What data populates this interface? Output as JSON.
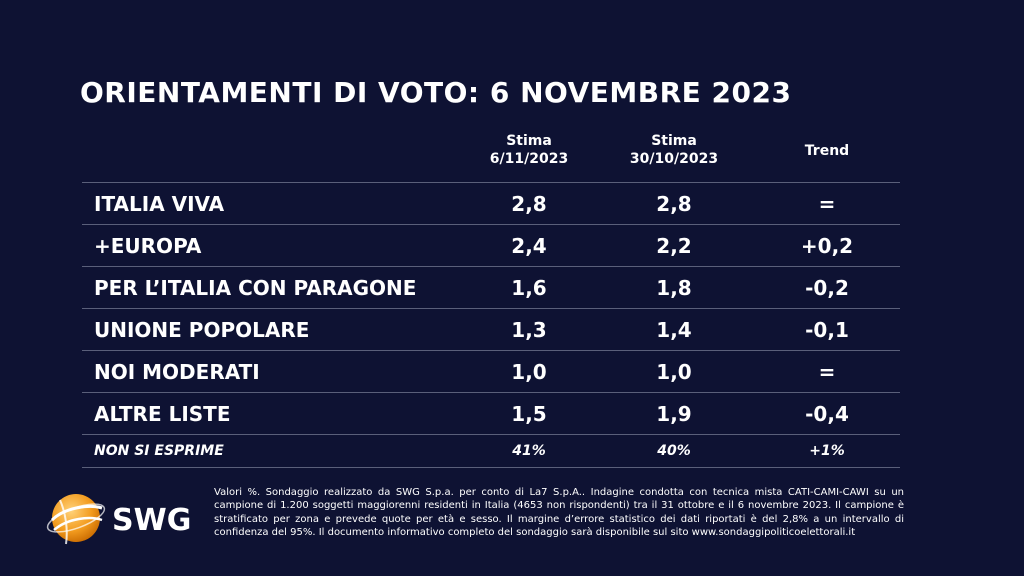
{
  "title": "ORIENTAMENTI DI VOTO: 6 NOVEMBRE 2023",
  "chart_data": {
    "type": "table",
    "columns": [
      {
        "line1": "Stima",
        "line2": "6/11/2023"
      },
      {
        "line1": "Stima",
        "line2": "30/10/2023"
      },
      {
        "line1": "Trend",
        "line2": ""
      }
    ],
    "rows": [
      {
        "party": "ITALIA VIVA",
        "stima_6_11": "2,8",
        "stima_30_10": "2,8",
        "trend": "="
      },
      {
        "party": "+EUROPA",
        "stima_6_11": "2,4",
        "stima_30_10": "2,2",
        "trend": "+0,2"
      },
      {
        "party": "PER L’ITALIA CON PARAGONE",
        "stima_6_11": "1,6",
        "stima_30_10": "1,8",
        "trend": "-0,2"
      },
      {
        "party": "UNIONE POPOLARE",
        "stima_6_11": "1,3",
        "stima_30_10": "1,4",
        "trend": "-0,1"
      },
      {
        "party": "NOI MODERATI",
        "stima_6_11": "1,0",
        "stima_30_10": "1,0",
        "trend": "="
      },
      {
        "party": "ALTRE LISTE",
        "stima_6_11": "1,5",
        "stima_30_10": "1,9",
        "trend": "-0,4"
      }
    ],
    "non_si_esprime": {
      "party": "NON SI ESPRIME",
      "stima_6_11": "41%",
      "stima_30_10": "40%",
      "trend": "+1%"
    }
  },
  "logo": {
    "text": "SWG",
    "color": "#f39c1f"
  },
  "footnote": "Valori %. Sondaggio realizzato da SWG S.p.a. per conto di La7 S.p.A.. Indagine condotta con tecnica mista CATI-CAMI-CAWI su un campione di 1.200 soggetti maggiorenni residenti in Italia (4653 non rispondenti) tra il 31 ottobre e il 6 novembre 2023. Il campione è stratificato per zona e prevede quote per età e sesso. Il margine d’errore statistico dei dati riportati è del 2,8% a un intervallo di confidenza del 95%. Il documento informativo completo del sondaggio sarà disponibile sul sito www.sondaggipoliticoelettorali.it"
}
